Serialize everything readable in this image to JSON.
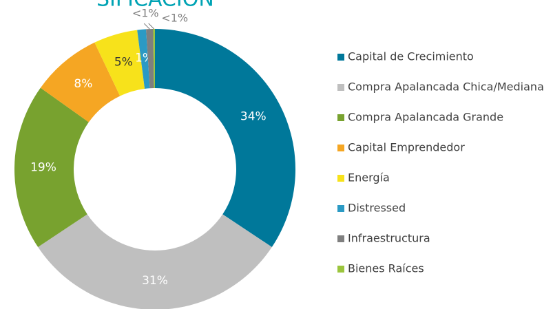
{
  "chart_data": {
    "type": "donut",
    "title": "SIFICACIÓN",
    "categories": [
      "Capital de Crecimiento",
      "Compra Apalancada Chica/Mediana",
      "Compra Apalancada Grande",
      "Capital Emprendedor",
      "Energía",
      "Distressed",
      "Infraestructura",
      "Bienes Raíces"
    ],
    "values": [
      34,
      31,
      19,
      8,
      5,
      1,
      0.8,
      0.2
    ],
    "value_labels": [
      "34%",
      "31%",
      "19%",
      "8%",
      "5%",
      "1%",
      "<1%",
      "<1%"
    ],
    "colors": [
      "#00789a",
      "#bfbfbf",
      "#78a22f",
      "#f5a623",
      "#f7e21b",
      "#2b9ac4",
      "#7f7f7f",
      "#9bc53d"
    ],
    "legend": "right"
  }
}
